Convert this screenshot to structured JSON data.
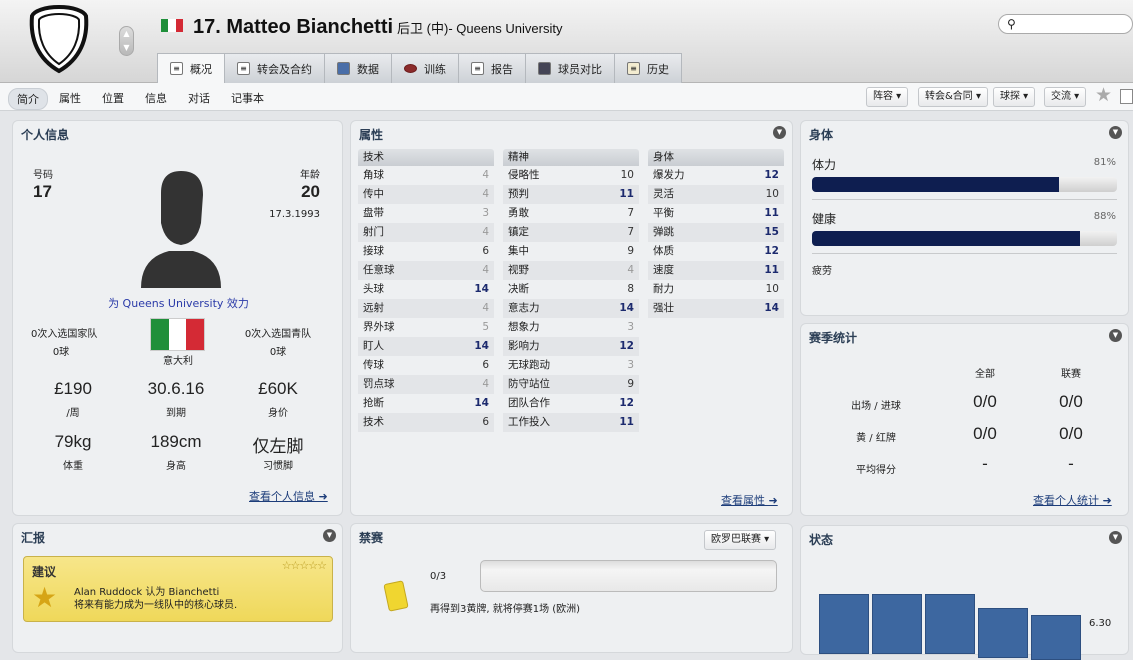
{
  "header": {
    "name": "17. Matteo Bianchetti",
    "position_club": "后卫 (中)- Queens University",
    "search_placeholder": "",
    "flag_colors": [
      "#1f8f3a",
      "#ffffff",
      "#d42a35"
    ]
  },
  "tabs": [
    {
      "label": "概况",
      "icon": "overview-icon"
    },
    {
      "label": "转会及合约",
      "icon": "document-icon"
    },
    {
      "label": "数据",
      "icon": "stats-icon"
    },
    {
      "label": "训练",
      "icon": "football-icon"
    },
    {
      "label": "报告",
      "icon": "report-icon"
    },
    {
      "label": "球员对比",
      "icon": "compare-icon"
    },
    {
      "label": "历史",
      "icon": "history-icon"
    }
  ],
  "subnav": [
    "简介",
    "属性",
    "位置",
    "信息",
    "对话",
    "记事本"
  ],
  "actions": [
    "阵容",
    "转会&合同",
    "球探",
    "交流"
  ],
  "personal": {
    "title": "个人信息",
    "number_label": "号码",
    "number": "17",
    "age_label": "年龄",
    "age": "20",
    "dob": "17.3.1993",
    "plays_for": "为 Queens University 效力",
    "caps_label": "0次入选国家队",
    "caps_goals": "0球",
    "youth_caps_label": "0次入选国青队",
    "youth_goals": "0球",
    "nation": "意大利",
    "wage": "£190",
    "wage_label": "/周",
    "expires": "30.6.16",
    "expires_label": "到期",
    "value": "£60K",
    "value_label": "身价",
    "weight": "79kg",
    "weight_label": "体重",
    "height": "189cm",
    "height_label": "身高",
    "foot": "仅左脚",
    "foot_label": "习惯脚",
    "link": "查看个人信息"
  },
  "attributes": {
    "title": "属性",
    "link": "查看属性",
    "technical": {
      "label": "技术",
      "rows": [
        [
          "角球",
          4
        ],
        [
          "传中",
          4
        ],
        [
          "盘带",
          3
        ],
        [
          "射门",
          4
        ],
        [
          "接球",
          6
        ],
        [
          "任意球",
          4
        ],
        [
          "头球",
          14
        ],
        [
          "远射",
          4
        ],
        [
          "界外球",
          5
        ],
        [
          "盯人",
          14
        ],
        [
          "传球",
          6
        ],
        [
          "罚点球",
          4
        ],
        [
          "抢断",
          14
        ],
        [
          "技术",
          6
        ]
      ]
    },
    "mental": {
      "label": "精神",
      "rows": [
        [
          "侵略性",
          10
        ],
        [
          "预判",
          11
        ],
        [
          "勇敢",
          7
        ],
        [
          "镇定",
          7
        ],
        [
          "集中",
          9
        ],
        [
          "视野",
          4
        ],
        [
          "决断",
          8
        ],
        [
          "意志力",
          14
        ],
        [
          "想象力",
          3
        ],
        [
          "影响力",
          12
        ],
        [
          "无球跑动",
          3
        ],
        [
          "防守站位",
          9
        ],
        [
          "团队合作",
          12
        ],
        [
          "工作投入",
          11
        ]
      ]
    },
    "physical": {
      "label": "身体",
      "rows": [
        [
          "爆发力",
          12
        ],
        [
          "灵活",
          10
        ],
        [
          "平衡",
          11
        ],
        [
          "弹跳",
          15
        ],
        [
          "体质",
          12
        ],
        [
          "速度",
          11
        ],
        [
          "耐力",
          10
        ],
        [
          "强壮",
          14
        ]
      ]
    }
  },
  "physical_panel": {
    "title": "身体",
    "condition_label": "体力",
    "condition": "81%",
    "condition_value": 81,
    "fitness_label": "健康",
    "fitness": "88%",
    "fitness_value": 88,
    "fatigue_label": "疲劳"
  },
  "season": {
    "title": "赛季统计",
    "col_all": "全部",
    "col_league": "联赛",
    "rows": [
      {
        "label": "出场 / 进球",
        "all": "0/0",
        "league": "0/0"
      },
      {
        "label": "黄 / 红牌",
        "all": "0/0",
        "league": "0/0"
      },
      {
        "label": "平均得分",
        "all": "-",
        "league": "-"
      }
    ],
    "link": "查看个人统计"
  },
  "report": {
    "title": "汇报",
    "card_title": "建议",
    "stars": 5,
    "line1": "Alan Ruddock 认为 Bianchetti",
    "line2": "将来有能力成为一线队中的核心球员."
  },
  "suspension": {
    "title": "禁赛",
    "competition": "欧罗巴联赛",
    "count": "0/3",
    "text": "再得到3黄牌, 就将停赛1场 (欧洲)"
  },
  "form": {
    "title": "状态",
    "last_rating": "6.30",
    "bar_color": "#3d67a0"
  }
}
